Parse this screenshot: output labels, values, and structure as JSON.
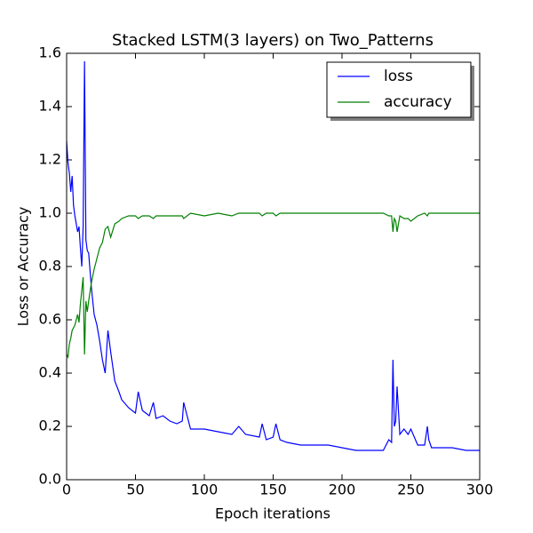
{
  "chart_data": {
    "type": "line",
    "title": "Stacked LSTM(3 layers) on Two_Patterns",
    "x_label": "Epoch iterations",
    "y_label": "Loss or Accuracy",
    "x": [
      0,
      1,
      2,
      3,
      4,
      5,
      6,
      7,
      8,
      9,
      10,
      11,
      12,
      13,
      14,
      15,
      16,
      18,
      20,
      22,
      24,
      26,
      28,
      30,
      32,
      35,
      38,
      40,
      45,
      50,
      52,
      55,
      60,
      63,
      65,
      70,
      75,
      80,
      84,
      85,
      90,
      100,
      110,
      120,
      125,
      130,
      140,
      142,
      145,
      150,
      152,
      155,
      160,
      170,
      180,
      190,
      200,
      210,
      220,
      230,
      234,
      236,
      237,
      238,
      239,
      240,
      242,
      245,
      248,
      250,
      255,
      260,
      262,
      263,
      265,
      270,
      280,
      290,
      300
    ],
    "series": [
      {
        "name": "loss",
        "color": "#0000ff",
        "values": [
          1.27,
          1.19,
          1.15,
          1.08,
          1.14,
          1.03,
          0.99,
          0.96,
          0.93,
          0.95,
          0.87,
          0.8,
          0.95,
          1.57,
          0.9,
          0.86,
          0.85,
          0.72,
          0.62,
          0.58,
          0.52,
          0.45,
          0.4,
          0.56,
          0.48,
          0.37,
          0.33,
          0.3,
          0.27,
          0.25,
          0.33,
          0.26,
          0.24,
          0.29,
          0.23,
          0.24,
          0.22,
          0.21,
          0.22,
          0.29,
          0.19,
          0.19,
          0.18,
          0.17,
          0.2,
          0.17,
          0.16,
          0.21,
          0.15,
          0.16,
          0.21,
          0.15,
          0.14,
          0.13,
          0.13,
          0.13,
          0.12,
          0.11,
          0.11,
          0.11,
          0.15,
          0.14,
          0.45,
          0.2,
          0.22,
          0.35,
          0.17,
          0.19,
          0.17,
          0.19,
          0.13,
          0.13,
          0.2,
          0.15,
          0.12,
          0.12,
          0.12,
          0.11,
          0.11
        ]
      },
      {
        "name": "accuracy",
        "color": "#008000",
        "values": [
          0.47,
          0.46,
          0.51,
          0.53,
          0.56,
          0.57,
          0.58,
          0.6,
          0.62,
          0.59,
          0.66,
          0.71,
          0.76,
          0.47,
          0.67,
          0.63,
          0.67,
          0.74,
          0.79,
          0.83,
          0.87,
          0.89,
          0.94,
          0.95,
          0.91,
          0.96,
          0.97,
          0.98,
          0.99,
          0.99,
          0.98,
          0.99,
          0.99,
          0.98,
          0.99,
          0.99,
          0.99,
          0.99,
          0.99,
          0.98,
          1.0,
          0.99,
          1.0,
          0.99,
          1.0,
          1.0,
          1.0,
          0.99,
          1.0,
          1.0,
          0.99,
          1.0,
          1.0,
          1.0,
          1.0,
          1.0,
          1.0,
          1.0,
          1.0,
          1.0,
          0.99,
          0.99,
          0.93,
          0.98,
          0.97,
          0.93,
          0.99,
          0.98,
          0.98,
          0.97,
          0.99,
          1.0,
          0.99,
          1.0,
          1.0,
          1.0,
          1.0,
          1.0,
          1.0
        ]
      }
    ],
    "xlim": [
      0,
      300
    ],
    "xticks": [
      0,
      50,
      100,
      150,
      200,
      250,
      300
    ],
    "ylim": [
      0,
      1.6
    ],
    "yticks": [
      {
        "value": 0,
        "label": "0.0"
      },
      0.2,
      0.4,
      0.6,
      0.8,
      {
        "value": 1,
        "label": "1.0"
      },
      1.2,
      1.4,
      1.6
    ],
    "legend": "upper right",
    "grid": false
  }
}
